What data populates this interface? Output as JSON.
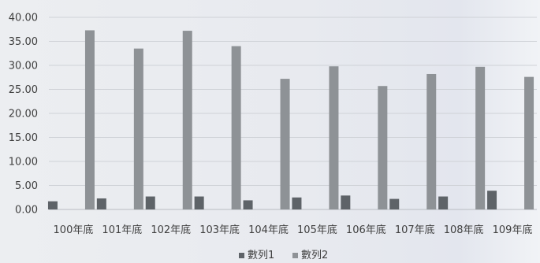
{
  "chart_data": {
    "type": "bar",
    "title": "",
    "xlabel": "",
    "ylabel": "",
    "categories": [
      "100年底",
      "101年底",
      "102年底",
      "103年底",
      "104年底",
      "105年底",
      "106年底",
      "107年底",
      "108年底",
      "109年底"
    ],
    "series": [
      {
        "name": "數列1",
        "color": "#5e6368",
        "values": [
          1.7,
          2.3,
          2.7,
          2.7,
          1.9,
          2.5,
          2.9,
          2.2,
          2.7,
          3.9
        ]
      },
      {
        "name": "數列2",
        "color": "#8e9296",
        "values": [
          37.3,
          33.5,
          37.2,
          34.0,
          27.2,
          29.8,
          25.7,
          28.2,
          29.7,
          27.6
        ]
      }
    ],
    "ylim": [
      0,
      40
    ],
    "yticks": [
      "0.00",
      "5.00",
      "10.00",
      "15.00",
      "20.00",
      "25.00",
      "30.00",
      "35.00",
      "40.00"
    ],
    "grid": true,
    "legend": "bottom-center"
  }
}
